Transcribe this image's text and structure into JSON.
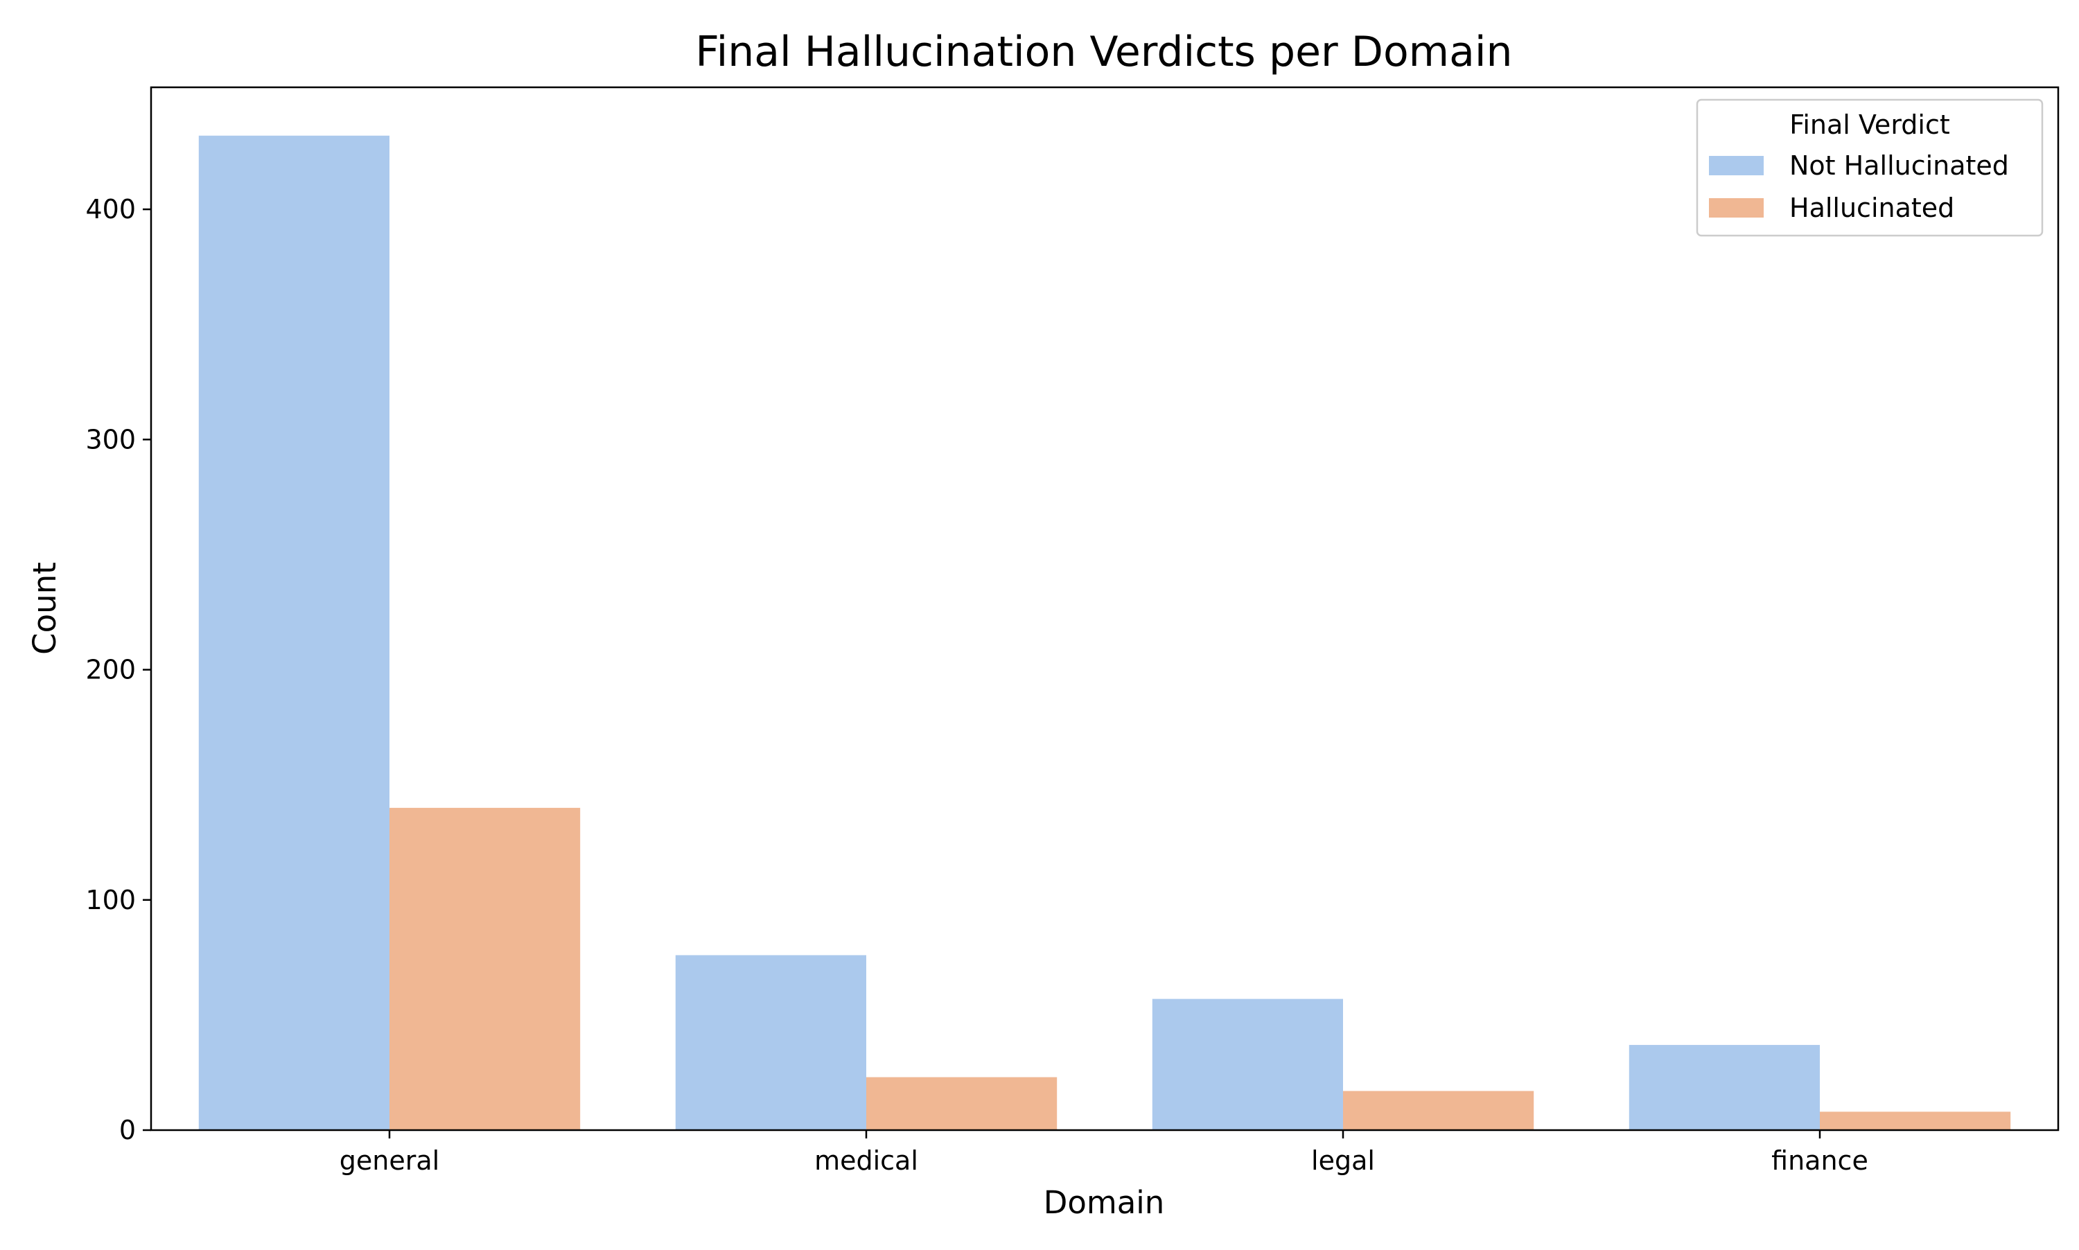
{
  "chart_data": {
    "type": "bar",
    "title": "Final Hallucination Verdicts per Domain",
    "xlabel": "Domain",
    "ylabel": "Count",
    "categories": [
      "general",
      "medical",
      "legal",
      "finance"
    ],
    "series": [
      {
        "name": "Not Hallucinated",
        "color": "#abc9ed",
        "values": [
          432,
          76,
          57,
          37
        ]
      },
      {
        "name": "Hallucinated",
        "color": "#f0b793",
        "values": [
          140,
          23,
          17,
          8
        ]
      }
    ],
    "ylim": [
      0,
      453
    ],
    "yticks": [
      0,
      100,
      200,
      300,
      400
    ],
    "grid": false,
    "legend": {
      "title": "Final Verdict",
      "position": "top-right"
    }
  }
}
